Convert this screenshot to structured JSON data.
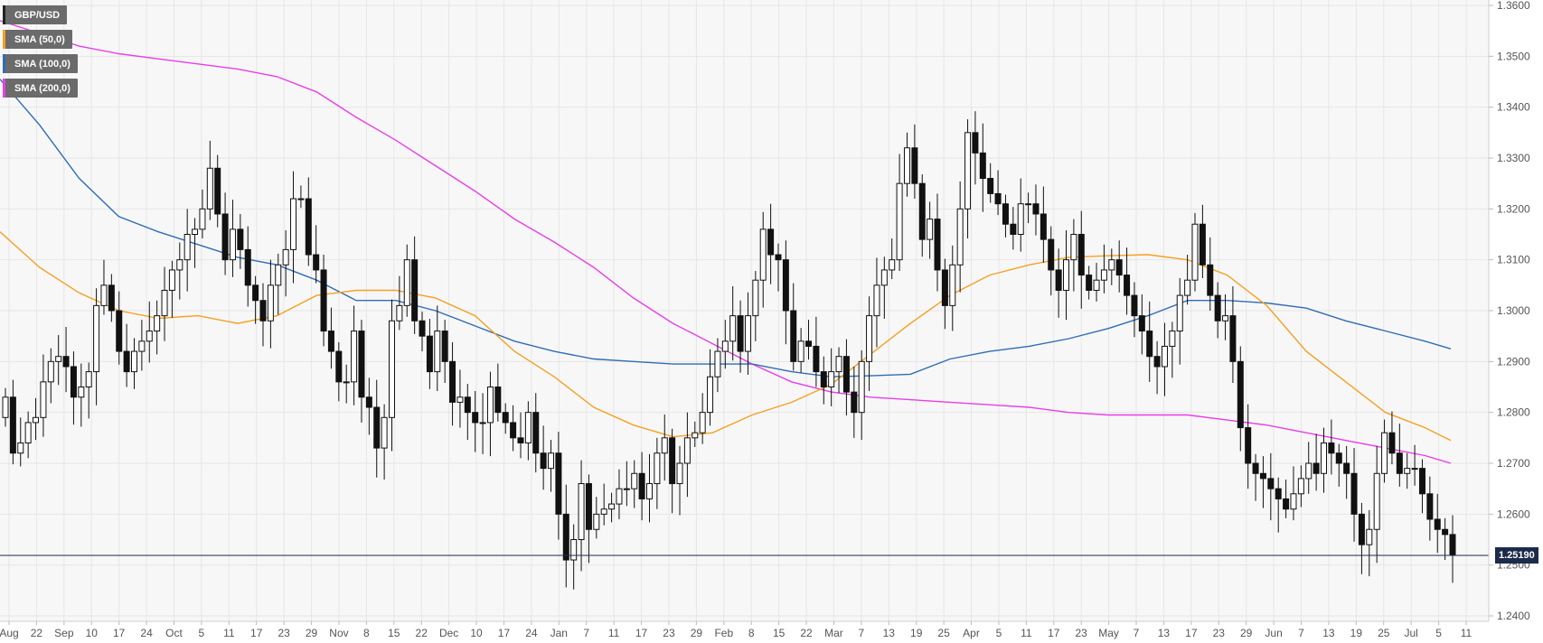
{
  "chart_data": {
    "type": "candlestick",
    "symbol": "GBP/USD",
    "y_axis": {
      "ticks": [
        "1.3600",
        "1.3500",
        "1.3400",
        "1.3300",
        "1.3200",
        "1.3100",
        "1.3000",
        "1.2900",
        "1.2800",
        "1.2700",
        "1.2600",
        "1.2500",
        "1.2400"
      ],
      "range": [
        1.24,
        1.36
      ]
    },
    "x_axis": {
      "ticks": [
        "Aug",
        "22",
        "Sep",
        "10",
        "17",
        "24",
        "Oct",
        "5",
        "11",
        "17",
        "23",
        "29",
        "Nov",
        "8",
        "15",
        "22",
        "Dec",
        "10",
        "17",
        "24",
        "Jan",
        "7",
        "11",
        "17",
        "23",
        "29",
        "Feb",
        "8",
        "15",
        "22",
        "Mar",
        "7",
        "13",
        "19",
        "25",
        "Apr",
        "5",
        "11",
        "17",
        "23",
        "May",
        "7",
        "13",
        "17",
        "23",
        "29",
        "Jun",
        "7",
        "13",
        "19",
        "25",
        "Jul",
        "5",
        "11"
      ]
    },
    "current_price": 1.2519,
    "current_price_label": "1.25190",
    "legend": [
      {
        "label": "GBP/USD",
        "color": "#222222"
      },
      {
        "label": "SMA (50,0)",
        "color": "#f5a020"
      },
      {
        "label": "SMA (100,0)",
        "color": "#2f6db5"
      },
      {
        "label": "SMA (200,0)",
        "color": "#e83ee8"
      }
    ],
    "sma50_points": [
      [
        0,
        1.3155
      ],
      [
        40,
        1.3085
      ],
      [
        80,
        1.3035
      ],
      [
        120,
        1.3
      ],
      [
        160,
        1.2985
      ],
      [
        200,
        1.299
      ],
      [
        240,
        1.2975
      ],
      [
        280,
        1.299
      ],
      [
        320,
        1.303
      ],
      [
        360,
        1.304
      ],
      [
        400,
        1.304
      ],
      [
        440,
        1.3025
      ],
      [
        480,
        1.299
      ],
      [
        520,
        1.292
      ],
      [
        560,
        1.287
      ],
      [
        600,
        1.281
      ],
      [
        640,
        1.2775
      ],
      [
        680,
        1.2752
      ],
      [
        720,
        1.276
      ],
      [
        760,
        1.2795
      ],
      [
        800,
        1.282
      ],
      [
        840,
        1.2855
      ],
      [
        880,
        1.2915
      ],
      [
        920,
        1.2975
      ],
      [
        960,
        1.303
      ],
      [
        1000,
        1.307
      ],
      [
        1040,
        1.309
      ],
      [
        1080,
        1.3105
      ],
      [
        1120,
        1.3108
      ],
      [
        1160,
        1.311
      ],
      [
        1200,
        1.31
      ],
      [
        1240,
        1.307
      ],
      [
        1280,
        1.301
      ],
      [
        1320,
        1.292
      ],
      [
        1360,
        1.286
      ],
      [
        1400,
        1.28
      ],
      [
        1440,
        1.277
      ],
      [
        1466,
        1.2745
      ]
    ],
    "sma100_points": [
      [
        0,
        1.3455
      ],
      [
        40,
        1.3365
      ],
      [
        80,
        1.326
      ],
      [
        120,
        1.3185
      ],
      [
        160,
        1.3155
      ],
      [
        200,
        1.313
      ],
      [
        240,
        1.3105
      ],
      [
        280,
        1.309
      ],
      [
        320,
        1.306
      ],
      [
        360,
        1.302
      ],
      [
        400,
        1.302
      ],
      [
        440,
        1.3
      ],
      [
        480,
        1.297
      ],
      [
        520,
        1.294
      ],
      [
        560,
        1.292
      ],
      [
        600,
        1.2905
      ],
      [
        640,
        1.29
      ],
      [
        680,
        1.2895
      ],
      [
        720,
        1.2895
      ],
      [
        760,
        1.2895
      ],
      [
        800,
        1.288
      ],
      [
        840,
        1.287
      ],
      [
        880,
        1.2872
      ],
      [
        920,
        1.2875
      ],
      [
        960,
        1.2905
      ],
      [
        1000,
        1.292
      ],
      [
        1040,
        1.293
      ],
      [
        1080,
        1.2945
      ],
      [
        1120,
        1.2965
      ],
      [
        1160,
        1.299
      ],
      [
        1200,
        1.302
      ],
      [
        1240,
        1.302
      ],
      [
        1280,
        1.3015
      ],
      [
        1320,
        1.3005
      ],
      [
        1360,
        1.298
      ],
      [
        1400,
        1.296
      ],
      [
        1440,
        1.294
      ],
      [
        1466,
        1.2925
      ]
    ],
    "sma200_points": [
      [
        0,
        1.357
      ],
      [
        40,
        1.3545
      ],
      [
        80,
        1.352
      ],
      [
        120,
        1.3505
      ],
      [
        160,
        1.3495
      ],
      [
        200,
        1.3485
      ],
      [
        240,
        1.3475
      ],
      [
        280,
        1.346
      ],
      [
        320,
        1.343
      ],
      [
        360,
        1.338
      ],
      [
        400,
        1.3335
      ],
      [
        440,
        1.3285
      ],
      [
        480,
        1.3235
      ],
      [
        520,
        1.318
      ],
      [
        560,
        1.3135
      ],
      [
        600,
        1.3085
      ],
      [
        640,
        1.3025
      ],
      [
        680,
        1.2975
      ],
      [
        720,
        1.2935
      ],
      [
        760,
        1.2895
      ],
      [
        800,
        1.286
      ],
      [
        840,
        1.284
      ],
      [
        880,
        1.283
      ],
      [
        920,
        1.2825
      ],
      [
        960,
        1.282
      ],
      [
        1000,
        1.2815
      ],
      [
        1040,
        1.281
      ],
      [
        1080,
        1.28
      ],
      [
        1120,
        1.2795
      ],
      [
        1160,
        1.2795
      ],
      [
        1200,
        1.2795
      ],
      [
        1240,
        1.2785
      ],
      [
        1280,
        1.2775
      ],
      [
        1320,
        1.276
      ],
      [
        1360,
        1.2745
      ],
      [
        1400,
        1.273
      ],
      [
        1440,
        1.2715
      ],
      [
        1466,
        1.27
      ]
    ],
    "candles_close": [
      1.283,
      1.272,
      1.274,
      1.278,
      1.279,
      1.286,
      1.29,
      1.291,
      1.289,
      1.283,
      1.285,
      1.288,
      1.301,
      1.305,
      1.3,
      1.292,
      1.288,
      1.292,
      1.294,
      1.296,
      1.299,
      1.304,
      1.308,
      1.31,
      1.315,
      1.316,
      1.32,
      1.328,
      1.319,
      1.31,
      1.316,
      1.312,
      1.305,
      1.302,
      1.298,
      1.305,
      1.309,
      1.312,
      1.322,
      1.322,
      1.311,
      1.308,
      1.296,
      1.292,
      1.286,
      1.286,
      1.296,
      1.283,
      1.281,
      1.273,
      1.279,
      1.298,
      1.301,
      1.31,
      1.298,
      1.295,
      1.288,
      1.296,
      1.29,
      1.282,
      1.283,
      1.28,
      1.278,
      1.278,
      1.285,
      1.28,
      1.278,
      1.275,
      1.274,
      1.28,
      1.272,
      1.269,
      1.272,
      1.26,
      1.251,
      1.255,
      1.266,
      1.257,
      1.26,
      1.261,
      1.262,
      1.265,
      1.265,
      1.268,
      1.263,
      1.266,
      1.272,
      1.275,
      1.266,
      1.27,
      1.275,
      1.276,
      1.28,
      1.287,
      1.292,
      1.294,
      1.299,
      1.292,
      1.299,
      1.306,
      1.316,
      1.311,
      1.31,
      1.3,
      1.29,
      1.294,
      1.293,
      1.288,
      1.285,
      1.288,
      1.291,
      1.284,
      1.28,
      1.29,
      1.299,
      1.305,
      1.308,
      1.31,
      1.325,
      1.332,
      1.325,
      1.314,
      1.318,
      1.308,
      1.301,
      1.309,
      1.32,
      1.335,
      1.331,
      1.326,
      1.323,
      1.321,
      1.317,
      1.315,
      1.321,
      1.321,
      1.319,
      1.314,
      1.308,
      1.304,
      1.31,
      1.315,
      1.307,
      1.304,
      1.306,
      1.308,
      1.31,
      1.307,
      1.303,
      1.299,
      1.296,
      1.291,
      1.289,
      1.293,
      1.296,
      1.303,
      1.306,
      1.317,
      1.309,
      1.303,
      1.298,
      1.299,
      1.29,
      1.277,
      1.27,
      1.268,
      1.267,
      1.265,
      1.263,
      1.261,
      1.264,
      1.267,
      1.27,
      1.268,
      1.274,
      1.272,
      1.27,
      1.268,
      1.26,
      1.254,
      1.257,
      1.268,
      1.276,
      1.272,
      1.268,
      1.269,
      1.269,
      1.264,
      1.259,
      1.257,
      1.256,
      1.2519
    ]
  }
}
